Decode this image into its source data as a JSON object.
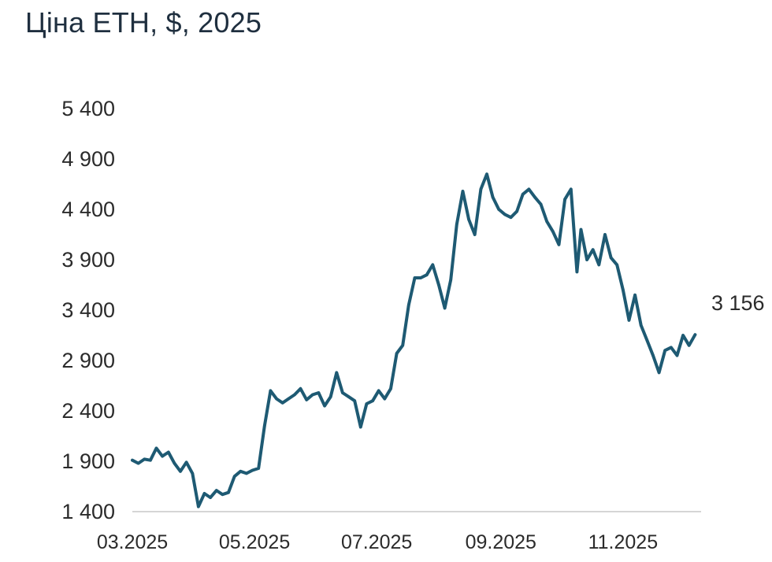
{
  "chart_data": {
    "type": "line",
    "title": "Ціна ETH, $, 2025",
    "xlabel": "",
    "ylabel": "",
    "x_tick_labels": [
      "03.2025",
      "05.2025",
      "07.2025",
      "09.2025",
      "11.2025"
    ],
    "y_tick_labels": [
      "5 400",
      "4 900",
      "4 400",
      "3 900",
      "3 400",
      "2 900",
      "2 400",
      "1 900",
      "1 400"
    ],
    "y_ticks": [
      5400,
      4900,
      4400,
      3900,
      3400,
      2900,
      2400,
      1900,
      1400
    ],
    "ylim": [
      1400,
      5400
    ],
    "xlim": [
      "2025-03-01",
      "2025-12-10"
    ],
    "end_label": "3 156",
    "color": "#1e5a73",
    "grid": false,
    "series": [
      {
        "x": [
          "2025-03-01",
          "2025-03-04",
          "2025-03-07",
          "2025-03-10",
          "2025-03-13",
          "2025-03-16",
          "2025-03-19",
          "2025-03-22",
          "2025-03-25",
          "2025-03-28",
          "2025-03-31",
          "2025-04-03",
          "2025-04-06",
          "2025-04-09",
          "2025-04-12",
          "2025-04-15",
          "2025-04-18",
          "2025-04-21",
          "2025-04-24",
          "2025-04-27",
          "2025-04-30",
          "2025-05-03",
          "2025-05-06",
          "2025-05-09",
          "2025-05-12",
          "2025-05-15",
          "2025-05-18",
          "2025-05-21",
          "2025-05-24",
          "2025-05-27",
          "2025-05-30",
          "2025-06-02",
          "2025-06-05",
          "2025-06-08",
          "2025-06-11",
          "2025-06-14",
          "2025-06-17",
          "2025-06-20",
          "2025-06-23",
          "2025-06-26",
          "2025-06-29",
          "2025-07-02",
          "2025-07-05",
          "2025-07-08",
          "2025-07-11",
          "2025-07-14",
          "2025-07-17",
          "2025-07-20",
          "2025-07-23",
          "2025-07-26",
          "2025-07-29",
          "2025-08-01",
          "2025-08-04",
          "2025-08-07",
          "2025-08-10",
          "2025-08-13",
          "2025-08-16",
          "2025-08-19",
          "2025-08-22",
          "2025-08-25",
          "2025-08-28",
          "2025-08-31",
          "2025-09-03",
          "2025-09-06",
          "2025-09-09",
          "2025-09-12",
          "2025-09-15",
          "2025-09-18",
          "2025-09-21",
          "2025-09-24",
          "2025-09-27",
          "2025-09-30",
          "2025-10-03",
          "2025-10-06",
          "2025-10-09",
          "2025-10-11",
          "2025-10-14",
          "2025-10-17",
          "2025-10-20",
          "2025-10-23",
          "2025-10-26",
          "2025-10-29",
          "2025-11-01",
          "2025-11-04",
          "2025-11-07",
          "2025-11-10",
          "2025-11-13",
          "2025-11-16",
          "2025-11-19",
          "2025-11-22",
          "2025-11-25",
          "2025-11-28",
          "2025-12-01",
          "2025-12-04",
          "2025-12-07"
        ],
        "values": [
          1910,
          1880,
          1920,
          1910,
          2030,
          1950,
          1990,
          1880,
          1800,
          1890,
          1780,
          1450,
          1580,
          1540,
          1610,
          1570,
          1590,
          1750,
          1800,
          1780,
          1810,
          1830,
          2250,
          2600,
          2520,
          2480,
          2520,
          2560,
          2620,
          2510,
          2560,
          2580,
          2450,
          2540,
          2780,
          2580,
          2540,
          2500,
          2240,
          2470,
          2500,
          2600,
          2520,
          2620,
          2970,
          3050,
          3450,
          3720,
          3720,
          3750,
          3850,
          3650,
          3420,
          3700,
          4250,
          4580,
          4300,
          4150,
          4600,
          4750,
          4520,
          4400,
          4350,
          4320,
          4380,
          4550,
          4600,
          4520,
          4450,
          4280,
          4180,
          4050,
          4500,
          4600,
          3780,
          4200,
          3900,
          4000,
          3850,
          4150,
          3920,
          3850,
          3600,
          3300,
          3550,
          3250,
          3100,
          2950,
          2780,
          3000,
          3030,
          2950,
          3150,
          3050,
          3156
        ]
      }
    ]
  }
}
